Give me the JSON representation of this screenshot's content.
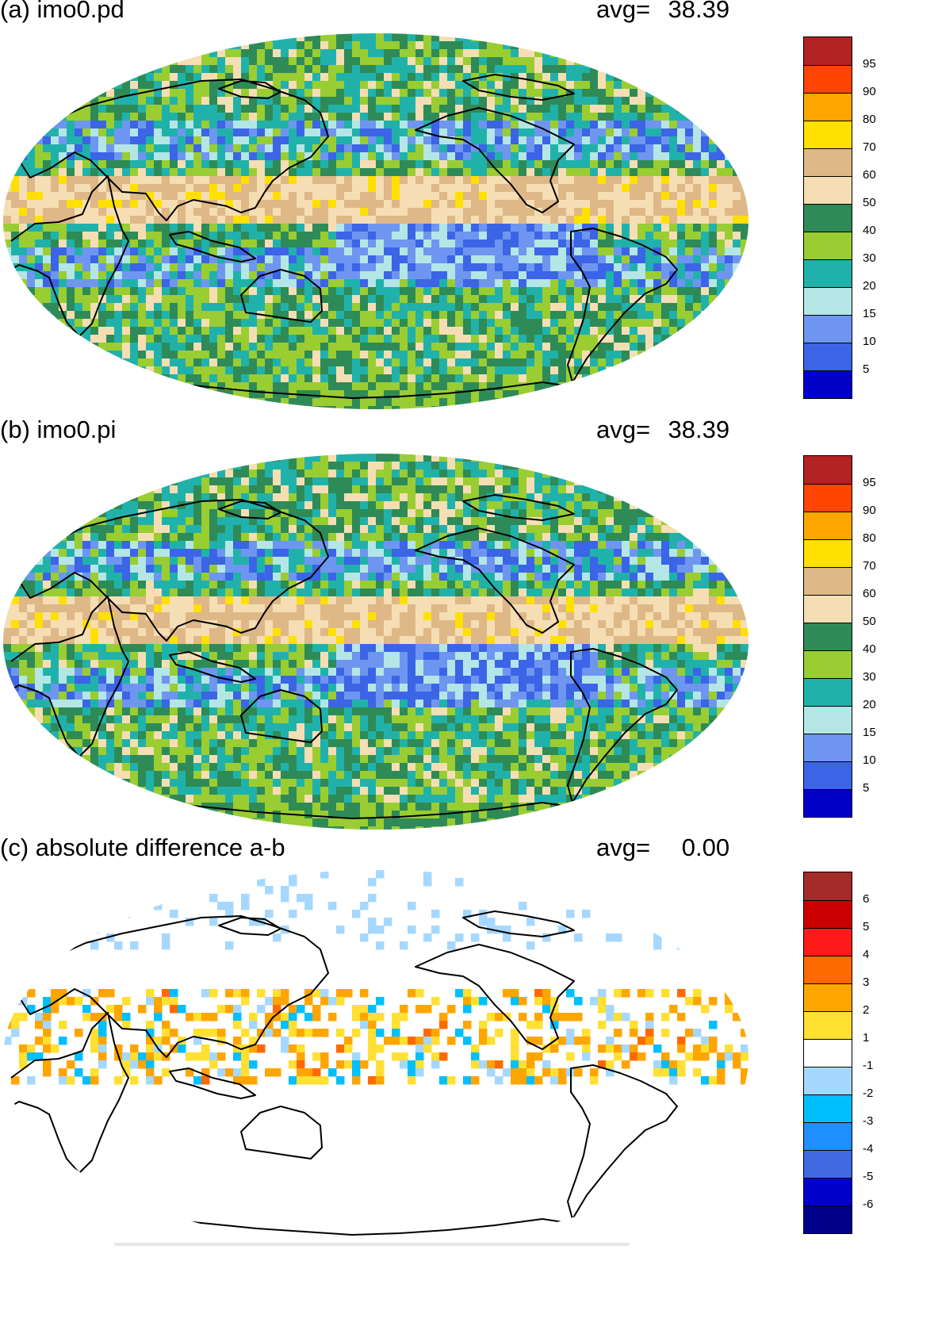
{
  "panels": [
    {
      "title": "(a) imo0.pd",
      "avg_label": "avg=",
      "avg_value": "38.39",
      "kind": "abs",
      "colorbar": {
        "colors": [
          "#0000c8",
          "#3c64e6",
          "#6e96f0",
          "#b4e6e6",
          "#20b2aa",
          "#9acd32",
          "#2e8b57",
          "#f5deb3",
          "#deb887",
          "#ffe000",
          "#ffa500",
          "#ff4500",
          "#b22222"
        ],
        "labels": [
          "5",
          "10",
          "15",
          "20",
          "30",
          "40",
          "50",
          "60",
          "70",
          "80",
          "90",
          "95"
        ]
      }
    },
    {
      "title": "(b) imo0.pi",
      "avg_label": "avg=",
      "avg_value": "38.39",
      "kind": "abs",
      "colorbar": {
        "colors": [
          "#0000c8",
          "#3c64e6",
          "#6e96f0",
          "#b4e6e6",
          "#20b2aa",
          "#9acd32",
          "#2e8b57",
          "#f5deb3",
          "#deb887",
          "#ffe000",
          "#ffa500",
          "#ff4500",
          "#b22222"
        ],
        "labels": [
          "5",
          "10",
          "15",
          "20",
          "30",
          "40",
          "50",
          "60",
          "70",
          "80",
          "90",
          "95"
        ]
      }
    },
    {
      "title": "(c) absolute difference a-b",
      "avg_label": "avg=",
      "avg_value": "0.00",
      "kind": "diff",
      "colorbar": {
        "colors": [
          "#00008b",
          "#0000cd",
          "#4169e1",
          "#1e90ff",
          "#00bfff",
          "#a6d8ff",
          "#ffffff",
          "#ffe033",
          "#ffa500",
          "#ff6a00",
          "#ff1a1a",
          "#cc0000",
          "#a52a2a"
        ],
        "labels": [
          "-6",
          "-5",
          "-4",
          "-3",
          "-2",
          "-1",
          "1",
          "2",
          "3",
          "4",
          "5",
          "6"
        ]
      }
    }
  ]
}
